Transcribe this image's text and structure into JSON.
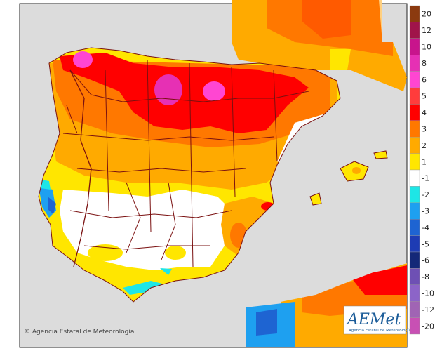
{
  "copyright": "© Agencia Estatal de Meteorología",
  "logo": {
    "text": "AEMet",
    "subtitle": "Agencia Estatal de Meteorología"
  },
  "legend": {
    "entries": [
      {
        "label": "20",
        "color": "#8b3a0f"
      },
      {
        "label": "12",
        "color": "#a0144a"
      },
      {
        "label": "10",
        "color": "#c8148c"
      },
      {
        "label": "8",
        "color": "#e630b4"
      },
      {
        "label": "6",
        "color": "#ff46d2"
      },
      {
        "label": "5",
        "color": "#ff3c3c"
      },
      {
        "label": "4",
        "color": "#ff0000"
      },
      {
        "label": "3",
        "color": "#ff7800"
      },
      {
        "label": "2",
        "color": "#ffaa00"
      },
      {
        "label": "1",
        "color": "#ffe600"
      },
      {
        "label": "-1",
        "color": "#ffffff"
      },
      {
        "label": "-2",
        "color": "#1ee6e6"
      },
      {
        "label": "-3",
        "color": "#1ea0f0"
      },
      {
        "label": "-4",
        "color": "#1e64d2"
      },
      {
        "label": "-5",
        "color": "#1e3cb4"
      },
      {
        "label": "-6",
        "color": "#142878"
      },
      {
        "label": "-8",
        "color": "#6e50b4"
      },
      {
        "label": "-10",
        "color": "#8c64c8"
      },
      {
        "label": "-12",
        "color": "#a064b4"
      },
      {
        "label": "-20",
        "color": "#c850b4"
      }
    ]
  },
  "colors": {
    "sea": "#dcdcdc",
    "land_base": "#ffe600",
    "border": "#7a1010"
  }
}
